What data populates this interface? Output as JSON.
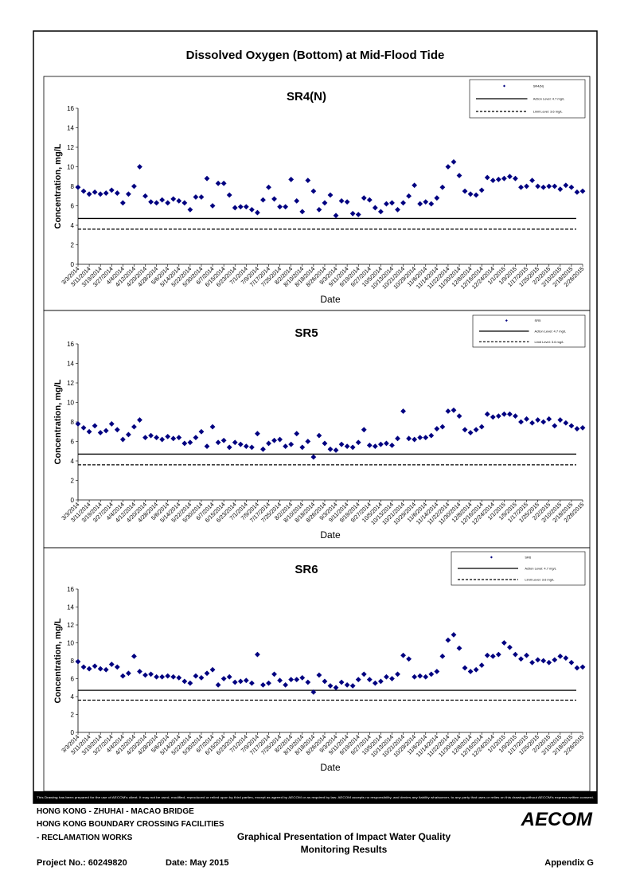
{
  "page_title": "Dissolved Oxygen (Bottom) at Mid-Flood Tide",
  "chart_data": [
    {
      "type": "scatter",
      "title": "SR4(N)",
      "xlabel": "Date",
      "ylabel": "Concentration, mg/L",
      "x": [
        "3/3/2014",
        "3/7/2014",
        "3/11/2014",
        "3/15/2014",
        "3/19/2014",
        "3/23/2014",
        "3/27/2014",
        "3/31/2014",
        "4/4/2014",
        "4/8/2014",
        "4/12/2014",
        "4/16/2014",
        "4/20/2014",
        "4/24/2014",
        "4/28/2014",
        "5/2/2014",
        "5/6/2014",
        "5/10/2014",
        "5/14/2014",
        "5/18/2014",
        "5/22/2014",
        "5/26/2014",
        "5/30/2014",
        "6/3/2014",
        "6/7/2014",
        "6/11/2014",
        "6/15/2014",
        "6/19/2014",
        "6/23/2014",
        "6/27/2014",
        "7/1/2014",
        "7/5/2014",
        "7/9/2014",
        "7/13/2014",
        "7/17/2014",
        "7/21/2014",
        "7/25/2014",
        "7/29/2014",
        "8/2/2014",
        "8/6/2014",
        "8/10/2014",
        "8/14/2014",
        "8/18/2014",
        "8/22/2014",
        "8/26/2014",
        "8/30/2014",
        "9/3/2014",
        "9/7/2014",
        "9/11/2014",
        "9/15/2014",
        "9/19/2014",
        "9/23/2014",
        "9/27/2014",
        "10/1/2014",
        "10/5/2014",
        "10/9/2014",
        "10/13/2014",
        "10/17/2014",
        "10/21/2014",
        "10/25/2014",
        "10/29/2014",
        "11/2/2014",
        "11/6/2014",
        "11/10/2014",
        "11/14/2014",
        "11/18/2014",
        "11/22/2014",
        "11/26/2014",
        "11/30/2014",
        "12/4/2014",
        "12/8/2014",
        "12/12/2014",
        "12/16/2014",
        "12/20/2014",
        "12/24/2014",
        "12/28/2014",
        "1/1/2015",
        "1/5/2015",
        "1/9/2015",
        "1/13/2015",
        "1/17/2015",
        "1/21/2015",
        "1/25/2015",
        "1/29/2015",
        "2/2/2015",
        "2/6/2015",
        "2/10/2015",
        "2/14/2015",
        "2/18/2015",
        "2/22/2015",
        "2/26/2015"
      ],
      "series": [
        {
          "name": "SR4(N)",
          "color": "#000080",
          "marker": "diamond",
          "values": [
            7.9,
            7.5,
            7.2,
            7.4,
            7.2,
            7.3,
            7.6,
            7.3,
            6.3,
            7.2,
            8.0,
            10.0,
            7.0,
            6.4,
            6.3,
            6.6,
            6.3,
            6.7,
            6.5,
            6.3,
            5.6,
            6.9,
            6.9,
            8.8,
            6.0,
            8.3,
            8.3,
            7.1,
            5.8,
            5.9,
            5.9,
            5.6,
            5.3,
            6.6,
            7.9,
            6.7,
            5.9,
            5.9,
            8.7,
            6.5,
            5.4,
            8.6,
            7.5,
            5.6,
            6.3,
            7.1,
            5.0,
            6.5,
            6.4,
            5.2,
            5.1,
            6.8,
            6.6,
            5.8,
            5.4,
            6.2,
            6.3,
            5.6,
            6.3,
            7.0,
            8.1,
            6.2,
            6.4,
            6.2,
            6.8,
            7.9,
            10.0,
            10.5,
            9.1,
            7.5,
            7.2,
            7.1,
            7.6,
            8.9,
            8.6,
            8.7,
            8.8,
            9.0,
            8.8,
            7.9,
            8.0,
            8.6,
            8.0,
            7.9,
            8.0,
            8.0,
            7.7,
            8.1,
            7.9,
            7.4,
            7.5
          ]
        }
      ],
      "ref_lines": [
        {
          "name": "Action Level: 4.7 mg/L",
          "value": 4.7,
          "style": "solid"
        },
        {
          "name": "Limit Level: 3.6 mg/L",
          "value": 3.6,
          "style": "dashed"
        }
      ],
      "xlim": [
        "3/3/2014",
        "2/26/2015"
      ],
      "xticks": [
        "3/3/2014",
        "3/11/2014",
        "3/19/2014",
        "3/27/2014",
        "4/4/2014",
        "4/12/2014",
        "4/20/2014",
        "4/28/2014",
        "5/6/2014",
        "5/14/2014",
        "5/22/2014",
        "5/30/2014",
        "6/7/2014",
        "6/15/2014",
        "6/23/2014",
        "7/1/2014",
        "7/9/2014",
        "7/17/2014",
        "7/25/2014",
        "8/2/2014",
        "8/10/2014",
        "8/18/2014",
        "8/26/2014",
        "9/3/2014",
        "9/11/2014",
        "9/19/2014",
        "9/27/2014",
        "10/5/2014",
        "10/13/2014",
        "10/21/2014",
        "10/29/2014",
        "11/6/2014",
        "11/14/2014",
        "11/22/2014",
        "11/30/2014",
        "12/8/2014",
        "12/16/2014",
        "12/24/2014",
        "1/1/2015",
        "1/9/2015",
        "1/17/2015",
        "1/25/2015",
        "2/2/2015",
        "2/10/2015",
        "2/18/2015",
        "2/26/2015"
      ],
      "ylim": [
        0,
        16
      ],
      "yticks": [
        0,
        2,
        4,
        6,
        8,
        10,
        12,
        14,
        16
      ],
      "grid": false,
      "legend": "top-right"
    },
    {
      "type": "scatter",
      "title": "SR5",
      "xlabel": "Date",
      "ylabel": "Concentration, mg/L",
      "x": [
        "3/3/2014",
        "3/7/2014",
        "3/11/2014",
        "3/15/2014",
        "3/19/2014",
        "3/23/2014",
        "3/27/2014",
        "3/31/2014",
        "4/4/2014",
        "4/8/2014",
        "4/12/2014",
        "4/16/2014",
        "4/20/2014",
        "4/24/2014",
        "4/28/2014",
        "5/2/2014",
        "5/6/2014",
        "5/10/2014",
        "5/14/2014",
        "5/18/2014",
        "5/22/2014",
        "5/26/2014",
        "5/30/2014",
        "6/3/2014",
        "6/7/2014",
        "6/11/2014",
        "6/15/2014",
        "6/19/2014",
        "6/23/2014",
        "6/27/2014",
        "7/1/2014",
        "7/5/2014",
        "7/9/2014",
        "7/13/2014",
        "7/17/2014",
        "7/21/2014",
        "7/25/2014",
        "7/29/2014",
        "8/2/2014",
        "8/6/2014",
        "8/10/2014",
        "8/14/2014",
        "8/18/2014",
        "8/22/2014",
        "8/26/2014",
        "8/30/2014",
        "9/3/2014",
        "9/7/2014",
        "9/11/2014",
        "9/15/2014",
        "9/19/2014",
        "9/23/2014",
        "9/27/2014",
        "10/1/2014",
        "10/5/2014",
        "10/9/2014",
        "10/13/2014",
        "10/17/2014",
        "10/21/2014",
        "10/25/2014",
        "10/29/2014",
        "11/2/2014",
        "11/6/2014",
        "11/10/2014",
        "11/14/2014",
        "11/18/2014",
        "11/22/2014",
        "11/26/2014",
        "11/30/2014",
        "12/4/2014",
        "12/8/2014",
        "12/12/2014",
        "12/16/2014",
        "12/20/2014",
        "12/24/2014",
        "12/28/2014",
        "1/1/2015",
        "1/5/2015",
        "1/9/2015",
        "1/13/2015",
        "1/17/2015",
        "1/21/2015",
        "1/25/2015",
        "1/29/2015",
        "2/2/2015",
        "2/6/2015",
        "2/10/2015",
        "2/14/2015",
        "2/18/2015",
        "2/22/2015",
        "2/26/2015"
      ],
      "series": [
        {
          "name": "SR5",
          "color": "#000080",
          "marker": "diamond",
          "values": [
            7.8,
            7.4,
            7.0,
            7.6,
            6.9,
            7.1,
            7.8,
            7.2,
            6.2,
            6.7,
            7.5,
            8.2,
            6.4,
            6.6,
            6.4,
            6.2,
            6.5,
            6.3,
            6.4,
            5.8,
            5.9,
            6.4,
            7.0,
            5.5,
            7.5,
            5.9,
            6.1,
            5.4,
            5.9,
            5.7,
            5.5,
            5.4,
            6.8,
            5.2,
            5.8,
            6.1,
            6.2,
            5.5,
            5.7,
            6.8,
            5.4,
            6.0,
            4.4,
            6.6,
            5.8,
            5.2,
            5.1,
            5.7,
            5.5,
            5.4,
            5.9,
            7.2,
            5.6,
            5.5,
            5.7,
            5.8,
            5.6,
            6.3,
            9.1,
            6.3,
            6.2,
            6.4,
            6.4,
            6.6,
            7.3,
            7.5,
            9.1,
            9.2,
            8.6,
            7.2,
            6.9,
            7.2,
            7.5,
            8.8,
            8.5,
            8.6,
            8.8,
            8.8,
            8.6,
            8.0,
            8.3,
            7.9,
            8.2,
            8.0,
            8.3,
            7.6,
            8.2,
            7.9,
            7.6,
            7.3,
            7.4
          ]
        }
      ],
      "ref_lines": [
        {
          "name": "Action Level: 4.7 mg/L",
          "value": 4.7,
          "style": "solid"
        },
        {
          "name": "Limit Level: 3.6 mg/L",
          "value": 3.6,
          "style": "dashed"
        }
      ],
      "xlim": [
        "3/3/2014",
        "2/26/2015"
      ],
      "xticks": [
        "3/3/2014",
        "3/11/2014",
        "3/19/2014",
        "3/27/2014",
        "4/4/2014",
        "4/12/2014",
        "4/20/2014",
        "4/28/2014",
        "5/6/2014",
        "5/14/2014",
        "5/22/2014",
        "5/30/2014",
        "6/7/2014",
        "6/15/2014",
        "6/23/2014",
        "7/1/2014",
        "7/9/2014",
        "7/17/2014",
        "7/25/2014",
        "8/2/2014",
        "8/10/2014",
        "8/18/2014",
        "8/26/2014",
        "9/3/2014",
        "9/11/2014",
        "9/19/2014",
        "9/27/2014",
        "10/5/2014",
        "10/13/2014",
        "10/21/2014",
        "10/29/2014",
        "11/6/2014",
        "11/14/2014",
        "11/22/2014",
        "11/30/2014",
        "12/8/2014",
        "12/16/2014",
        "12/24/2014",
        "1/1/2015",
        "1/9/2015",
        "1/17/2015",
        "1/25/2015",
        "2/2/2015",
        "2/10/2015",
        "2/18/2015",
        "2/26/2015"
      ],
      "ylim": [
        0,
        16
      ],
      "yticks": [
        0,
        2,
        4,
        6,
        8,
        10,
        12,
        14,
        16
      ],
      "grid": false,
      "legend": "top-right"
    },
    {
      "type": "scatter",
      "title": "SR6",
      "xlabel": "Date",
      "ylabel": "Concentration, mg/L",
      "x": [
        "3/3/2014",
        "3/7/2014",
        "3/11/2014",
        "3/15/2014",
        "3/19/2014",
        "3/23/2014",
        "3/27/2014",
        "3/31/2014",
        "4/4/2014",
        "4/8/2014",
        "4/12/2014",
        "4/16/2014",
        "4/20/2014",
        "4/24/2014",
        "4/28/2014",
        "5/2/2014",
        "5/6/2014",
        "5/10/2014",
        "5/14/2014",
        "5/18/2014",
        "5/22/2014",
        "5/26/2014",
        "5/30/2014",
        "6/3/2014",
        "6/7/2014",
        "6/11/2014",
        "6/15/2014",
        "6/19/2014",
        "6/23/2014",
        "6/27/2014",
        "7/1/2014",
        "7/5/2014",
        "7/9/2014",
        "7/13/2014",
        "7/17/2014",
        "7/21/2014",
        "7/25/2014",
        "7/29/2014",
        "8/2/2014",
        "8/6/2014",
        "8/10/2014",
        "8/14/2014",
        "8/18/2014",
        "8/22/2014",
        "8/26/2014",
        "8/30/2014",
        "9/3/2014",
        "9/7/2014",
        "9/11/2014",
        "9/15/2014",
        "9/19/2014",
        "9/23/2014",
        "9/27/2014",
        "10/1/2014",
        "10/5/2014",
        "10/9/2014",
        "10/13/2014",
        "10/17/2014",
        "10/21/2014",
        "10/25/2014",
        "10/29/2014",
        "11/2/2014",
        "11/6/2014",
        "11/10/2014",
        "11/14/2014",
        "11/18/2014",
        "11/22/2014",
        "11/26/2014",
        "11/30/2014",
        "12/4/2014",
        "12/8/2014",
        "12/12/2014",
        "12/16/2014",
        "12/20/2014",
        "12/24/2014",
        "12/28/2014",
        "1/1/2015",
        "1/5/2015",
        "1/9/2015",
        "1/13/2015",
        "1/17/2015",
        "1/21/2015",
        "1/25/2015",
        "1/29/2015",
        "2/2/2015",
        "2/6/2015",
        "2/10/2015",
        "2/14/2015",
        "2/18/2015",
        "2/22/2015",
        "2/26/2015"
      ],
      "series": [
        {
          "name": "SR6",
          "color": "#000080",
          "marker": "diamond",
          "values": [
            7.9,
            7.3,
            7.1,
            7.4,
            7.1,
            7.0,
            7.6,
            7.3,
            6.3,
            6.6,
            8.5,
            6.8,
            6.4,
            6.5,
            6.2,
            6.2,
            6.3,
            6.2,
            6.1,
            5.7,
            5.5,
            6.3,
            6.1,
            6.6,
            7.0,
            5.3,
            6.0,
            6.2,
            5.6,
            5.7,
            5.8,
            5.5,
            8.7,
            5.3,
            5.5,
            6.5,
            5.8,
            5.3,
            5.9,
            5.9,
            6.1,
            5.6,
            4.5,
            6.4,
            5.7,
            5.2,
            5.0,
            5.6,
            5.3,
            5.2,
            5.9,
            6.5,
            5.9,
            5.5,
            5.7,
            6.2,
            6.0,
            6.5,
            8.6,
            8.2,
            6.2,
            6.3,
            6.2,
            6.5,
            6.8,
            8.5,
            10.3,
            10.9,
            9.4,
            7.2,
            6.8,
            7.0,
            7.5,
            8.6,
            8.5,
            8.7,
            10.0,
            9.5,
            8.7,
            8.2,
            8.6,
            7.8,
            8.1,
            8.0,
            7.8,
            8.1,
            8.5,
            8.3,
            7.8,
            7.2,
            7.3
          ]
        }
      ],
      "ref_lines": [
        {
          "name": "Action Level: 4.7 mg/L",
          "value": 4.7,
          "style": "solid"
        },
        {
          "name": "Limit Level: 3.6 mg/L",
          "value": 3.6,
          "style": "dashed"
        }
      ],
      "xlim": [
        "3/3/2014",
        "2/26/2015"
      ],
      "xticks": [
        "3/3/2014",
        "3/11/2014",
        "3/19/2014",
        "3/27/2014",
        "4/4/2014",
        "4/12/2014",
        "4/20/2014",
        "4/28/2014",
        "5/6/2014",
        "5/14/2014",
        "5/22/2014",
        "5/30/2014",
        "6/7/2014",
        "6/15/2014",
        "6/23/2014",
        "7/1/2014",
        "7/9/2014",
        "7/17/2014",
        "7/25/2014",
        "8/2/2014",
        "8/10/2014",
        "8/18/2014",
        "8/26/2014",
        "9/3/2014",
        "9/11/2014",
        "9/19/2014",
        "9/27/2014",
        "10/5/2014",
        "10/13/2014",
        "10/21/2014",
        "10/29/2014",
        "11/6/2014",
        "11/14/2014",
        "11/22/2014",
        "11/30/2014",
        "12/8/2014",
        "12/16/2014",
        "12/24/2014",
        "1/1/2015",
        "1/9/2015",
        "1/17/2015",
        "1/25/2015",
        "2/2/2015",
        "2/10/2015",
        "2/18/2015",
        "2/26/2015"
      ],
      "ylim": [
        0,
        16
      ],
      "yticks": [
        0,
        2,
        4,
        6,
        8,
        10,
        12,
        14,
        16
      ],
      "grid": false,
      "legend": "top-right"
    }
  ],
  "footer": {
    "disclaimer": "This Drawing has been prepared for the use of AECOM's client. It may not be used, modified, reproduced or relied upon by third parties, except as agreed by AECOM or as required by law. AECOM accepts no responsibility, and denies any liability whatsoever, to any party that uses or relies on this drawing without AECOM's express written consent.",
    "project_lines": [
      "HONG KONG - ZHUHAI - MACAO BRIDGE",
      "HONG KONG BOUNDARY CROSSING FACILITIES",
      "- RECLAMATION WORKS"
    ],
    "drawing_title": [
      "Graphical Presentation of Impact Water Quality",
      "Monitoring Results"
    ],
    "logo": "AECOM",
    "project_no": "Project No.: 60249820",
    "date": "Date: May 2015",
    "appendix": "Appendix G"
  }
}
